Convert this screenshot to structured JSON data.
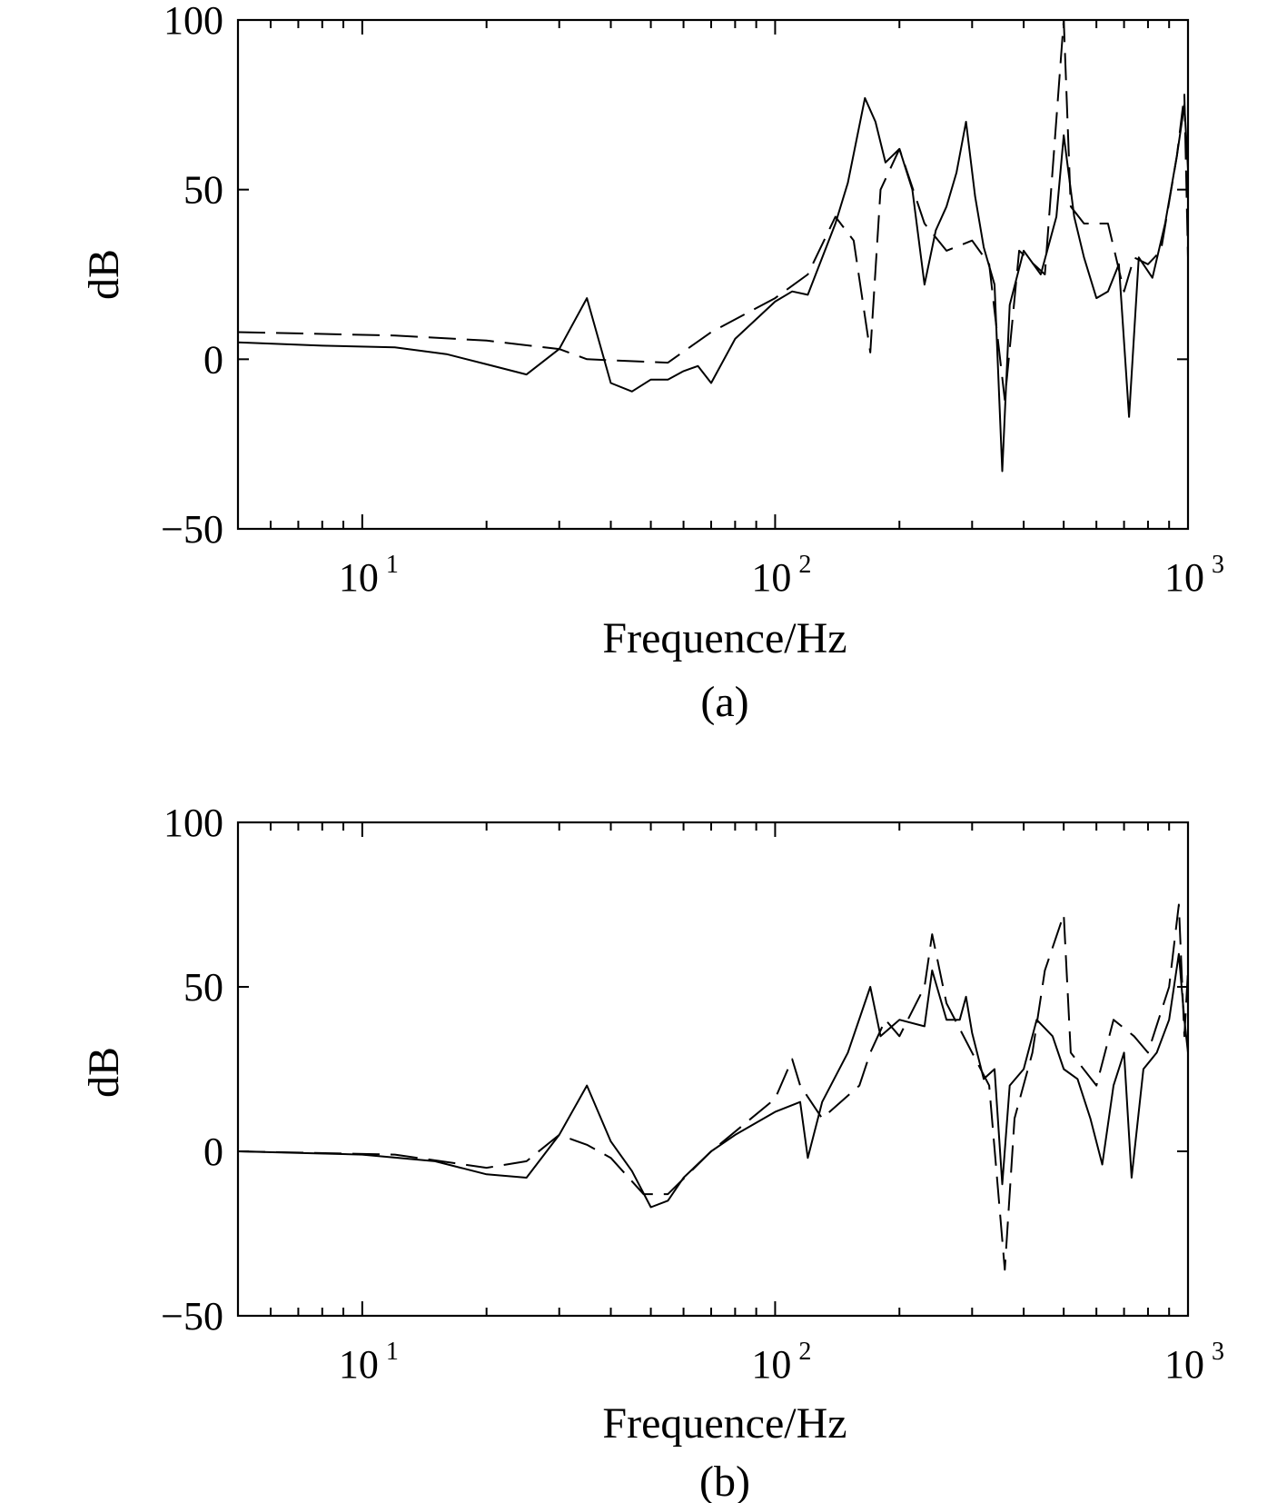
{
  "chart_data": [
    {
      "panel": "(a)",
      "type": "line",
      "xlabel": "Frequence/Hz",
      "ylabel": "dB",
      "xscale": "log",
      "xlim": [
        5,
        1000
      ],
      "ylim": [
        -50,
        100
      ],
      "yticks": [
        -50,
        0,
        50,
        100
      ],
      "ytick_labels": [
        "−50",
        "0",
        "50",
        "100"
      ],
      "xticks": [
        {
          "value": 10,
          "base": "10",
          "exp": "1"
        },
        {
          "value": 100,
          "base": "10",
          "exp": "2"
        },
        {
          "value": 1000,
          "base": "10",
          "exp": "3"
        }
      ],
      "grid": false,
      "series": [
        {
          "style": "solid",
          "points": [
            [
              5,
              5
            ],
            [
              8,
              4
            ],
            [
              12,
              3.5
            ],
            [
              16,
              1.5
            ],
            [
              20,
              -1.5
            ],
            [
              25,
              -4.5
            ],
            [
              30,
              3
            ],
            [
              35,
              18
            ],
            [
              40,
              -7
            ],
            [
              45,
              -9.5
            ],
            [
              50,
              -6
            ],
            [
              55,
              -6
            ],
            [
              60,
              -3.5
            ],
            [
              65,
              -2
            ],
            [
              70,
              -7
            ],
            [
              80,
              6
            ],
            [
              100,
              17
            ],
            [
              110,
              20
            ],
            [
              120,
              19
            ],
            [
              140,
              40
            ],
            [
              150,
              52
            ],
            [
              165,
              77
            ],
            [
              175,
              70
            ],
            [
              185,
              58
            ],
            [
              200,
              62
            ],
            [
              215,
              50
            ],
            [
              230,
              22
            ],
            [
              245,
              38
            ],
            [
              260,
              45
            ],
            [
              275,
              55
            ],
            [
              290,
              70
            ],
            [
              305,
              48
            ],
            [
              320,
              33
            ],
            [
              340,
              22
            ],
            [
              355,
              -33
            ],
            [
              370,
              16
            ],
            [
              400,
              32
            ],
            [
              440,
              25
            ],
            [
              480,
              42
            ],
            [
              500,
              66
            ],
            [
              530,
              42
            ],
            [
              560,
              30
            ],
            [
              600,
              18
            ],
            [
              640,
              20
            ],
            [
              680,
              28
            ],
            [
              720,
              -17
            ],
            [
              760,
              30
            ],
            [
              820,
              24
            ],
            [
              880,
              40
            ],
            [
              940,
              60
            ],
            [
              980,
              75
            ],
            [
              1000,
              56
            ]
          ]
        },
        {
          "style": "dashed",
          "points": [
            [
              5,
              8
            ],
            [
              12,
              7
            ],
            [
              20,
              5.5
            ],
            [
              30,
              3
            ],
            [
              35,
              0
            ],
            [
              55,
              -1
            ],
            [
              70,
              8
            ],
            [
              100,
              18
            ],
            [
              120,
              25
            ],
            [
              140,
              42
            ],
            [
              155,
              35
            ],
            [
              170,
              2
            ],
            [
              180,
              50
            ],
            [
              200,
              62
            ],
            [
              230,
              40
            ],
            [
              260,
              32
            ],
            [
              300,
              35
            ],
            [
              330,
              28
            ],
            [
              360,
              -12
            ],
            [
              390,
              32
            ],
            [
              450,
              25
            ],
            [
              500,
              100
            ],
            [
              520,
              45
            ],
            [
              560,
              40
            ],
            [
              640,
              40
            ],
            [
              700,
              20
            ],
            [
              740,
              30
            ],
            [
              800,
              28
            ],
            [
              860,
              32
            ],
            [
              940,
              60
            ],
            [
              980,
              78
            ],
            [
              1000,
              30
            ]
          ]
        }
      ]
    },
    {
      "panel": "(b)",
      "type": "line",
      "xlabel": "Frequence/Hz",
      "ylabel": "dB",
      "xscale": "log",
      "xlim": [
        5,
        1000
      ],
      "ylim": [
        -50,
        100
      ],
      "yticks": [
        -50,
        0,
        50,
        100
      ],
      "ytick_labels": [
        "−50",
        "0",
        "50",
        "100"
      ],
      "xticks": [
        {
          "value": 10,
          "base": "10",
          "exp": "1"
        },
        {
          "value": 100,
          "base": "10",
          "exp": "2"
        },
        {
          "value": 1000,
          "base": "10",
          "exp": "3"
        }
      ],
      "grid": false,
      "series": [
        {
          "style": "solid",
          "points": [
            [
              5,
              0
            ],
            [
              10,
              -1
            ],
            [
              15,
              -3
            ],
            [
              20,
              -7
            ],
            [
              25,
              -8
            ],
            [
              30,
              5
            ],
            [
              35,
              20
            ],
            [
              40,
              3
            ],
            [
              45,
              -6
            ],
            [
              50,
              -17
            ],
            [
              55,
              -15
            ],
            [
              60,
              -8
            ],
            [
              70,
              0
            ],
            [
              80,
              5
            ],
            [
              100,
              12
            ],
            [
              115,
              15
            ],
            [
              120,
              -2
            ],
            [
              130,
              15
            ],
            [
              150,
              30
            ],
            [
              170,
              50
            ],
            [
              180,
              35
            ],
            [
              200,
              40
            ],
            [
              230,
              38
            ],
            [
              240,
              55
            ],
            [
              260,
              40
            ],
            [
              280,
              40
            ],
            [
              290,
              47
            ],
            [
              300,
              36
            ],
            [
              320,
              22
            ],
            [
              340,
              25
            ],
            [
              355,
              -10
            ],
            [
              370,
              20
            ],
            [
              400,
              25
            ],
            [
              430,
              40
            ],
            [
              470,
              35
            ],
            [
              500,
              25
            ],
            [
              540,
              22
            ],
            [
              580,
              10
            ],
            [
              620,
              -4
            ],
            [
              660,
              20
            ],
            [
              700,
              30
            ],
            [
              730,
              -8
            ],
            [
              780,
              25
            ],
            [
              840,
              30
            ],
            [
              900,
              40
            ],
            [
              950,
              60
            ],
            [
              980,
              40
            ],
            [
              1000,
              30
            ]
          ]
        },
        {
          "style": "dashed",
          "points": [
            [
              5,
              0
            ],
            [
              12,
              -1
            ],
            [
              20,
              -5
            ],
            [
              25,
              -3
            ],
            [
              30,
              5
            ],
            [
              35,
              2
            ],
            [
              40,
              -2
            ],
            [
              48,
              -13
            ],
            [
              55,
              -13
            ],
            [
              70,
              0
            ],
            [
              100,
              16
            ],
            [
              110,
              28
            ],
            [
              115,
              20
            ],
            [
              130,
              10
            ],
            [
              160,
              20
            ],
            [
              170,
              30
            ],
            [
              185,
              40
            ],
            [
              200,
              35
            ],
            [
              230,
              50
            ],
            [
              240,
              66
            ],
            [
              260,
              45
            ],
            [
              300,
              30
            ],
            [
              330,
              20
            ],
            [
              360,
              -36
            ],
            [
              380,
              10
            ],
            [
              420,
              30
            ],
            [
              450,
              55
            ],
            [
              500,
              72
            ],
            [
              520,
              30
            ],
            [
              600,
              20
            ],
            [
              660,
              40
            ],
            [
              740,
              35
            ],
            [
              800,
              30
            ],
            [
              900,
              50
            ],
            [
              950,
              75
            ],
            [
              980,
              35
            ],
            [
              1000,
              55
            ]
          ]
        }
      ]
    }
  ]
}
